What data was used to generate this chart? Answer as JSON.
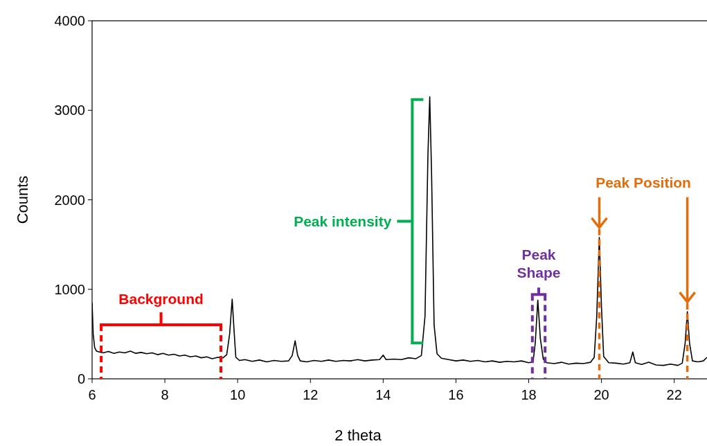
{
  "chart_data": {
    "type": "line",
    "xlabel": "2 theta",
    "ylabel": "Counts",
    "xlim": [
      6,
      22.9
    ],
    "xticks": [
      6,
      8,
      10,
      12,
      14,
      16,
      18,
      20,
      22
    ],
    "ylim": [
      0,
      4000
    ],
    "yticks": [
      0,
      1000,
      2000,
      3000,
      4000
    ],
    "grid": false,
    "legend": false,
    "marker": "none",
    "line_style": "solid",
    "series": [
      {
        "color": "#000000",
        "x": [
          6.0,
          6.03,
          6.07,
          6.12,
          6.2,
          6.3,
          6.45,
          6.6,
          6.75,
          6.9,
          7.05,
          7.2,
          7.35,
          7.5,
          7.65,
          7.8,
          7.95,
          8.1,
          8.25,
          8.4,
          8.55,
          8.7,
          8.85,
          9.0,
          9.15,
          9.3,
          9.45,
          9.6,
          9.7,
          9.78,
          9.85,
          9.9,
          9.95,
          10.05,
          10.2,
          10.4,
          10.6,
          10.8,
          11.0,
          11.2,
          11.4,
          11.5,
          11.58,
          11.65,
          11.72,
          11.9,
          12.1,
          12.3,
          12.5,
          12.7,
          12.9,
          13.1,
          13.3,
          13.5,
          13.7,
          13.9,
          14.0,
          14.08,
          14.3,
          14.5,
          14.7,
          14.9,
          15.05,
          15.15,
          15.23,
          15.28,
          15.33,
          15.4,
          15.48,
          15.6,
          15.8,
          16.0,
          16.2,
          16.4,
          16.6,
          16.8,
          17.0,
          17.2,
          17.4,
          17.6,
          17.8,
          18.0,
          18.12,
          18.18,
          18.25,
          18.32,
          18.4,
          18.5,
          18.7,
          18.9,
          19.1,
          19.3,
          19.5,
          19.7,
          19.8,
          19.87,
          19.94,
          20.0,
          20.06,
          20.2,
          20.4,
          20.6,
          20.78,
          20.86,
          20.93,
          21.1,
          21.3,
          21.5,
          21.7,
          21.9,
          22.1,
          22.22,
          22.3,
          22.36,
          22.42,
          22.5,
          22.65,
          22.8,
          22.9
        ],
        "values": [
          850,
          500,
          350,
          310,
          300,
          290,
          305,
          285,
          300,
          290,
          310,
          285,
          295,
          280,
          290,
          270,
          285,
          265,
          275,
          255,
          265,
          245,
          255,
          235,
          245,
          225,
          240,
          235,
          270,
          500,
          890,
          550,
          240,
          205,
          215,
          195,
          210,
          190,
          205,
          195,
          200,
          260,
          425,
          260,
          200,
          190,
          205,
          195,
          210,
          195,
          205,
          200,
          215,
          200,
          210,
          215,
          265,
          215,
          220,
          215,
          235,
          225,
          260,
          700,
          2500,
          3150,
          2300,
          600,
          280,
          230,
          215,
          200,
          210,
          195,
          205,
          190,
          200,
          185,
          195,
          190,
          200,
          180,
          190,
          400,
          880,
          450,
          220,
          180,
          170,
          185,
          165,
          175,
          170,
          185,
          240,
          700,
          1580,
          800,
          250,
          180,
          175,
          165,
          180,
          300,
          180,
          160,
          185,
          155,
          150,
          165,
          150,
          175,
          400,
          750,
          400,
          200,
          190,
          200,
          240
        ]
      }
    ],
    "ref_lines": [
      {
        "axis": "x",
        "value": 6.25,
        "label": "Background",
        "color": "#ff0000",
        "line_style": "dashed"
      },
      {
        "axis": "x",
        "value": 9.54,
        "color": "#ff0000",
        "line_style": "dashed"
      },
      {
        "axis": "x",
        "value": 14.8,
        "label": "Peak intensity",
        "color": "#00b050",
        "line_style": "solid"
      },
      {
        "axis": "x",
        "value": 18.1,
        "label": "Peak Shape",
        "color": "#7030a0",
        "line_style": "dashed"
      },
      {
        "axis": "x",
        "value": 18.45,
        "color": "#7030a0",
        "line_style": "dashed"
      },
      {
        "axis": "x",
        "value": 19.94,
        "label": "Peak Position",
        "color": "#e46c0a",
        "line_style": "dashed"
      },
      {
        "axis": "x",
        "value": 22.36,
        "color": "#e46c0a",
        "line_style": "dashed"
      }
    ]
  }
}
